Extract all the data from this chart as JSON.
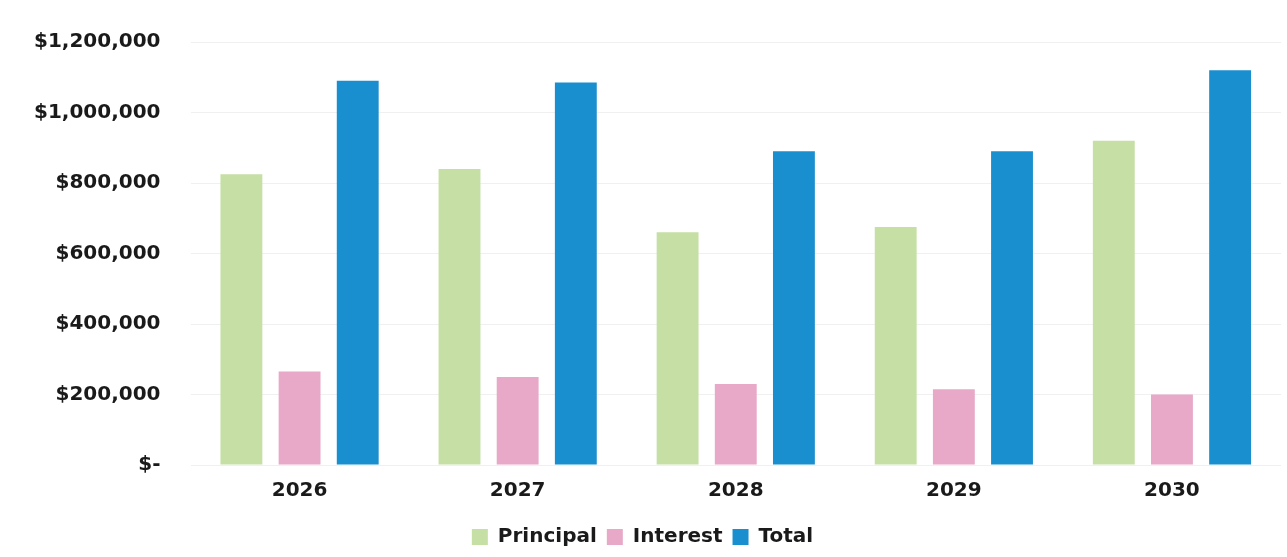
{
  "chart_data": {
    "type": "bar",
    "categories": [
      "2026",
      "2027",
      "2028",
      "2029",
      "2030"
    ],
    "series": [
      {
        "name": "Principal",
        "color": "#c5dfa5",
        "values": [
          825000,
          840000,
          660000,
          675000,
          920000
        ]
      },
      {
        "name": "Interest",
        "color": "#e8a8c8",
        "values": [
          265000,
          250000,
          230000,
          215000,
          200000
        ]
      },
      {
        "name": "Total",
        "color": "#1a8fcf",
        "values": [
          1090000,
          1085000,
          890000,
          890000,
          1120000
        ]
      }
    ],
    "ylim": [
      0,
      1200000
    ],
    "yticks": [
      {
        "value": 0,
        "label": "$-"
      },
      {
        "value": 200000,
        "label": "$200,000"
      },
      {
        "value": 400000,
        "label": "$400,000"
      },
      {
        "value": 600000,
        "label": "$600,000"
      },
      {
        "value": 800000,
        "label": "$800,000"
      },
      {
        "value": 1000000,
        "label": "$1,000,000"
      },
      {
        "value": 1200000,
        "label": "$1,200,000"
      }
    ],
    "grid": "y",
    "legend": "bottom"
  }
}
